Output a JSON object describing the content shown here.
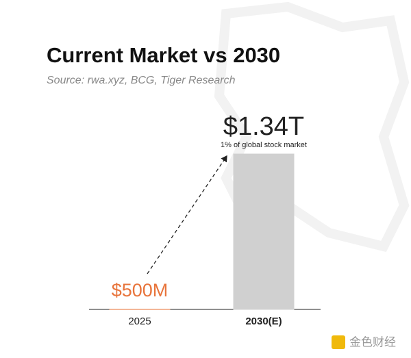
{
  "chart_data": {
    "type": "bar",
    "title": "Current Market vs 2030",
    "subtitle": "Source: rwa.xyz, BCG, Tiger Research",
    "categories": [
      "2025",
      "2030(E)"
    ],
    "values": [
      500000000,
      1340000000000
    ],
    "value_labels": [
      "$500M",
      "$1.34T"
    ],
    "colors": [
      "#e8743b",
      "#d0d0d0"
    ],
    "annotation": "1% of global stock market",
    "watermark": "金色财经"
  }
}
